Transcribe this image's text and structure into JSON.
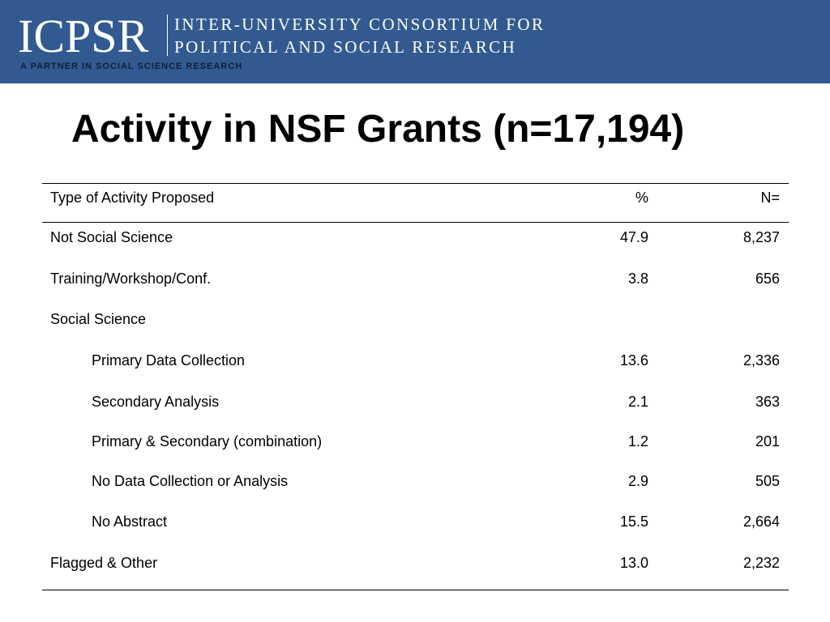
{
  "header": {
    "logo": "ICPSR",
    "consortium_line1": "INTER-UNIVERSITY CONSORTIUM FOR",
    "consortium_line2": "POLITICAL AND SOCIAL RESEARCH",
    "tagline": "A PARTNER IN SOCIAL SCIENCE RESEARCH"
  },
  "slide": {
    "title": "Activity in NSF Grants (n=17,194)"
  },
  "table": {
    "columns": [
      "Type of Activity Proposed",
      "%",
      "N="
    ],
    "rows": [
      {
        "activity": "Not Social Science",
        "pct": "47.9",
        "n": "8,237"
      },
      {
        "activity": "Training/Workshop/Conf.",
        "pct": "3.8",
        "n": "656"
      },
      {
        "activity": "Social Science",
        "pct": "",
        "n": ""
      },
      {
        "activity": "Primary Data Collection",
        "pct": "13.6",
        "n": "2,336"
      },
      {
        "activity": "Secondary Analysis",
        "pct": "2.1",
        "n": "363"
      },
      {
        "activity": "Primary & Secondary (combination)",
        "pct": "1.2",
        "n": "201"
      },
      {
        "activity": "No Data Collection or Analysis",
        "pct": "2.9",
        "n": "505"
      },
      {
        "activity": "No Abstract",
        "pct": "15.5",
        "n": "2,664"
      },
      {
        "activity": "Flagged & Other",
        "pct": "13.0",
        "n": "2,232"
      }
    ]
  }
}
